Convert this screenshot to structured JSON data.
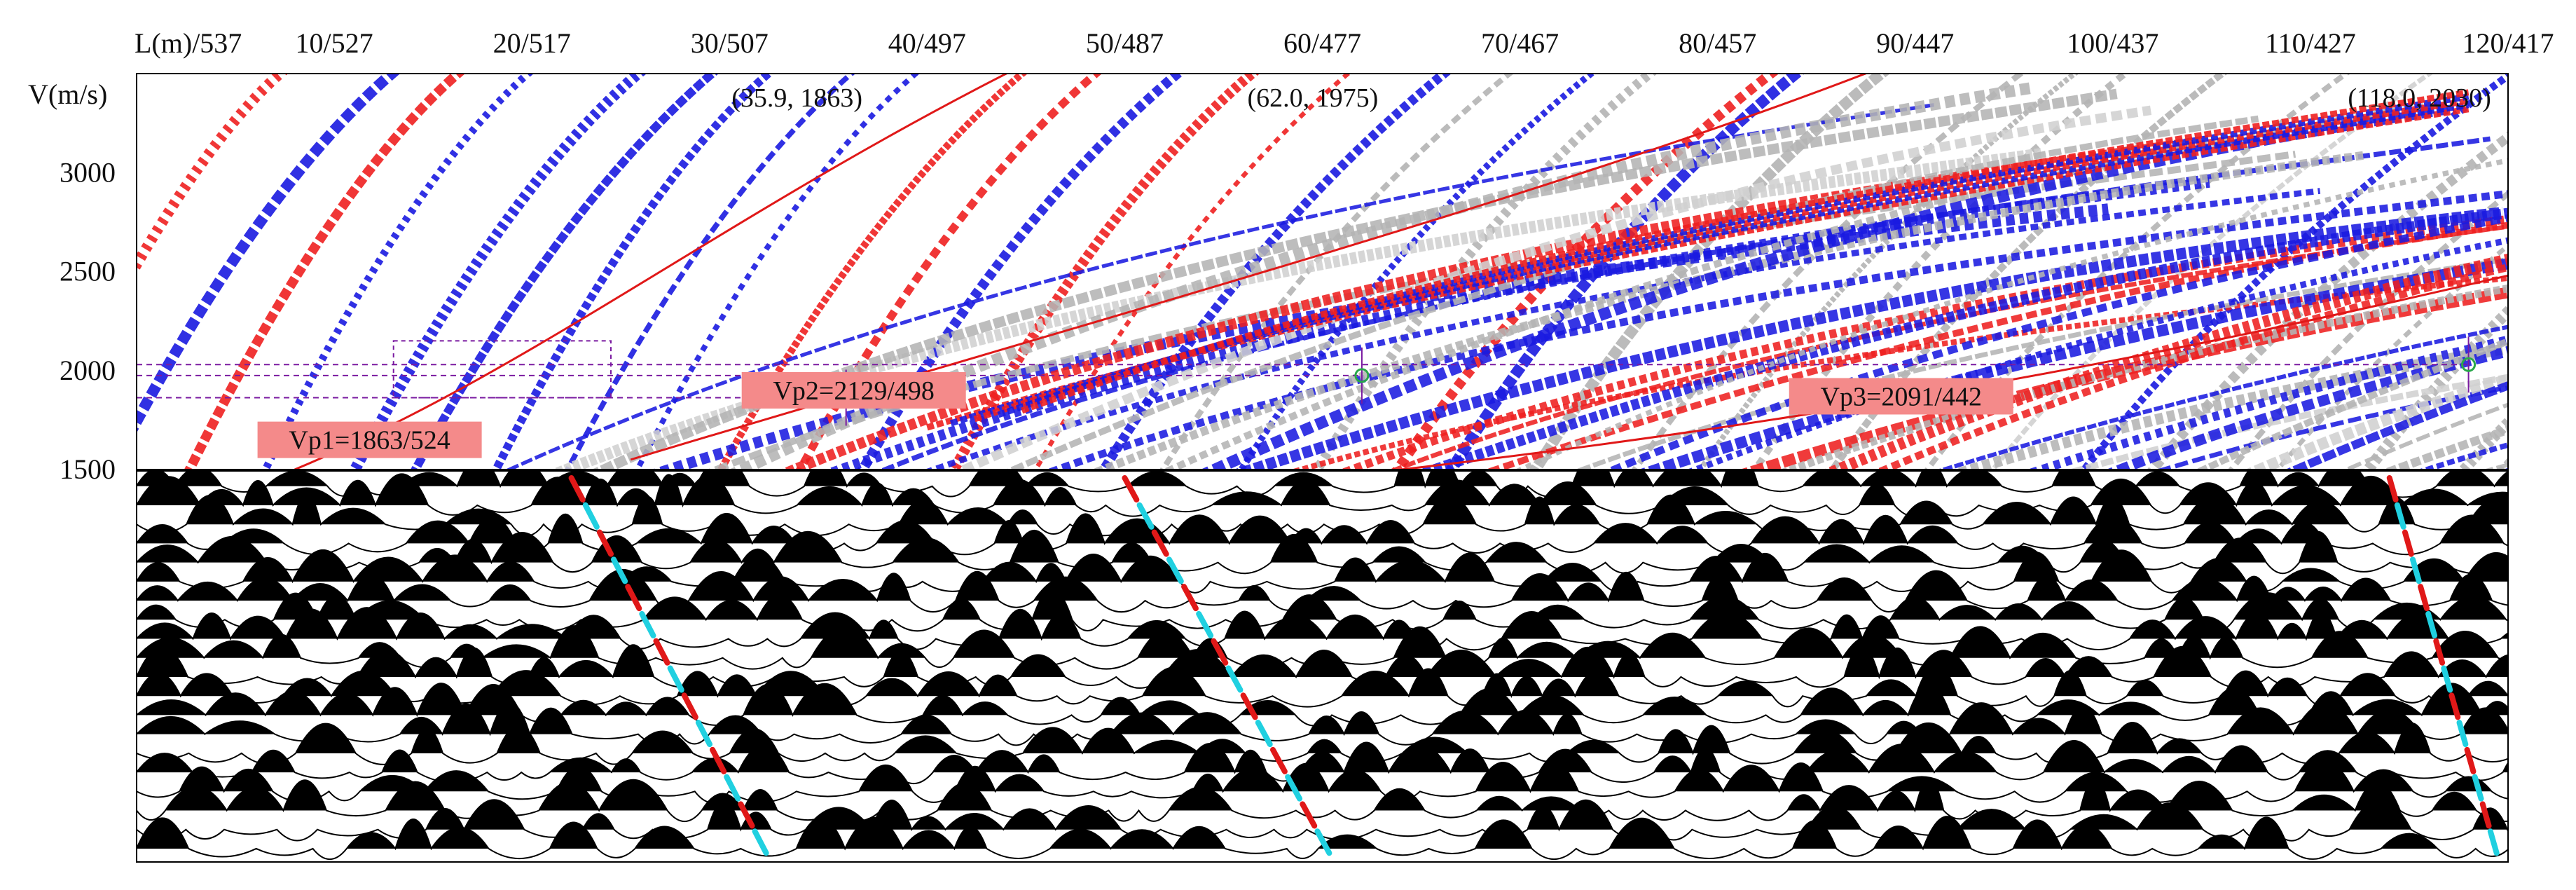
{
  "chart_data": {
    "type": "heatmap",
    "top_axis": {
      "label": "L(m)/537",
      "ticks": [
        "10/527",
        "20/517",
        "30/507",
        "40/497",
        "50/487",
        "60/477",
        "70/467",
        "80/457",
        "90/447",
        "100/437",
        "110/427",
        "120/417"
      ],
      "range": [
        0,
        120
      ]
    },
    "y_axis": {
      "label": "V(m/s)",
      "ticks": [
        "3000",
        "2500",
        "2000",
        "1500"
      ],
      "tick_values": [
        3000,
        2500,
        2000,
        1500
      ],
      "range": [
        1500,
        3500
      ]
    },
    "picked_points": [
      {
        "label": "(35.9, 1863)",
        "x": 35.9,
        "v": 1863
      },
      {
        "label": "(62.0, 1975)",
        "x": 62.0,
        "v": 1975
      },
      {
        "label": "(118.0, 2030)",
        "x": 118.0,
        "v": 2030
      }
    ],
    "velocity_labels": [
      {
        "text": "Vp1=1863/524",
        "x": 12.5,
        "v": 1650
      },
      {
        "text": "Vp2=2129/498",
        "x": 37,
        "v": 1900
      },
      {
        "text": "Vp3=2091/442",
        "x": 90,
        "v": 1870
      }
    ],
    "colors": {
      "positive": "#ee2020",
      "negative": "#1a1ae0",
      "weak": "#b4b4b4",
      "pick_red": "#e01818",
      "pick_cyan": "#20d0e0",
      "guide": "#7a1aa0",
      "vp_label_bg": "#f48a8a"
    },
    "traces": {
      "count": 20,
      "picked_events": [
        {
          "x_start": 22.0,
          "x_end": 32.0
        },
        {
          "x_start": 50.0,
          "x_end": 60.5
        },
        {
          "x_start": 114.0,
          "x_end": 119.5
        }
      ]
    }
  }
}
